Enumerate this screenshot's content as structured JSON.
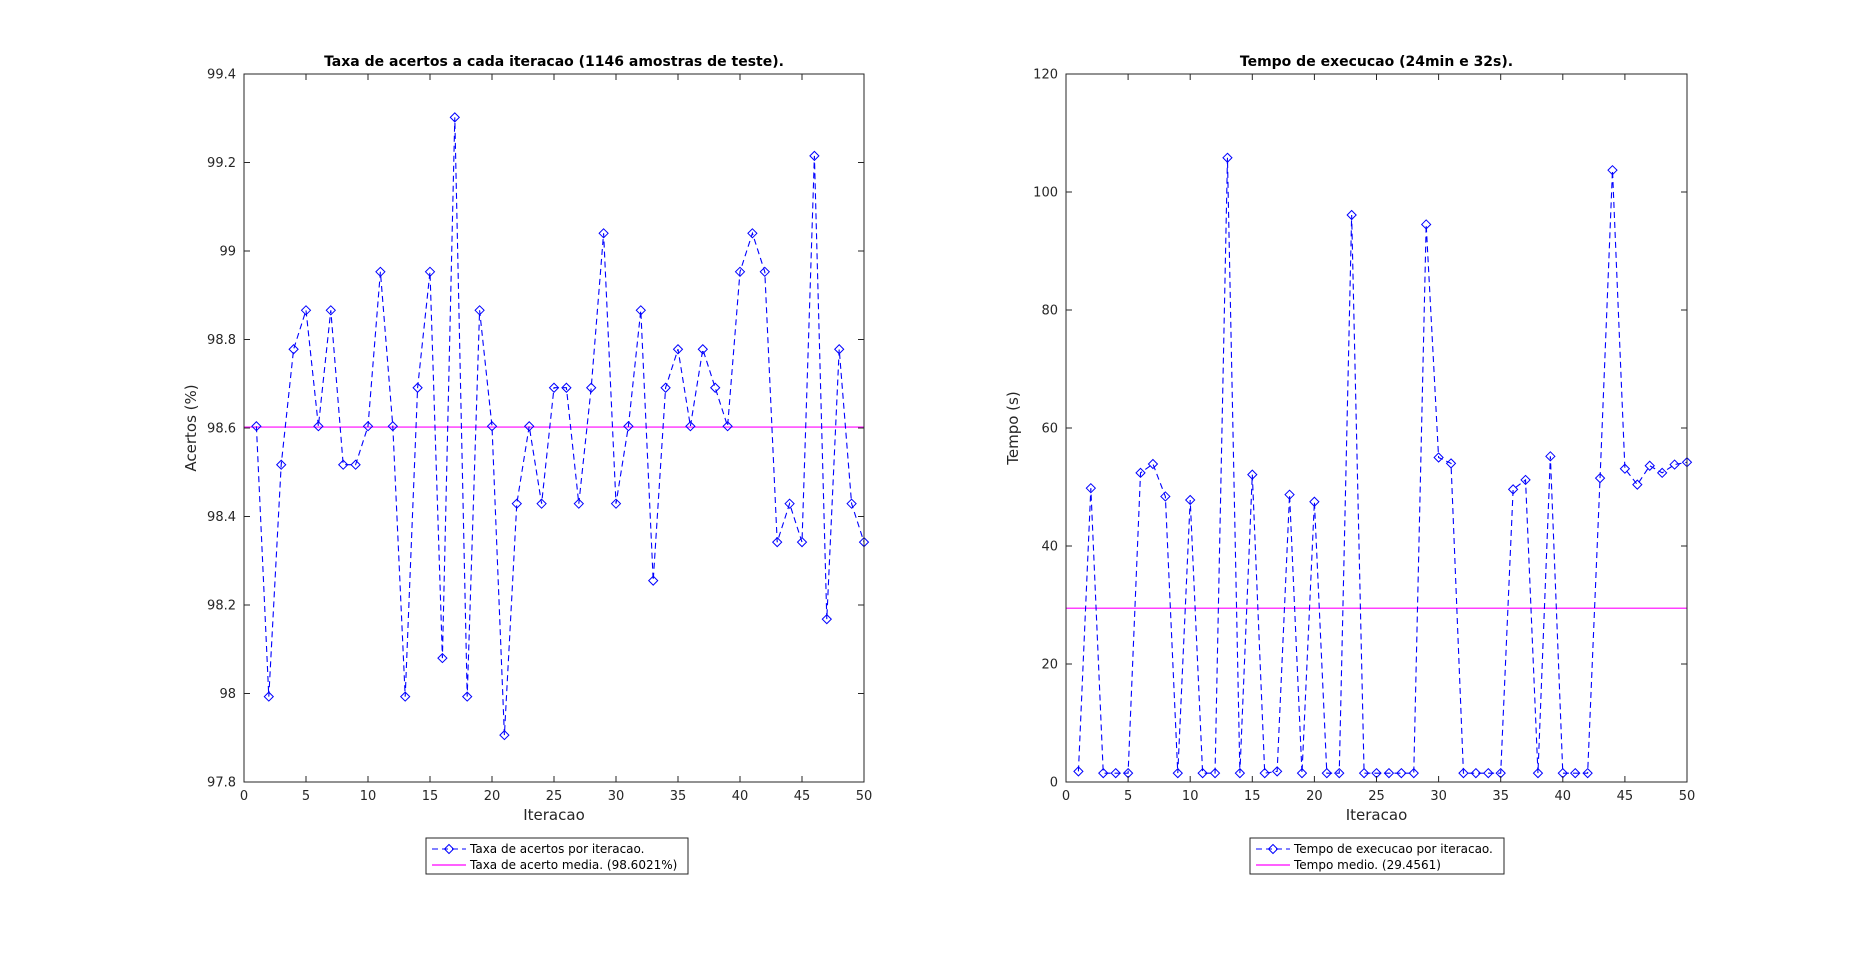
{
  "chart_data": [
    {
      "type": "line",
      "title": "Taxa de acertos a cada iteracao (1146 amostras de teste).",
      "xlabel": "Iteracao",
      "ylabel": "Acertos (%)",
      "xlim": [
        0,
        50
      ],
      "ylim": [
        97.8,
        99.4
      ],
      "xticks": [
        0,
        5,
        10,
        15,
        20,
        25,
        30,
        35,
        40,
        45,
        50
      ],
      "xtick_labels": [
        "0",
        "5",
        "10",
        "15",
        "20",
        "25",
        "30",
        "35",
        "40",
        "45",
        "50"
      ],
      "yticks": [
        97.8,
        98,
        98.2,
        98.4,
        98.6,
        98.8,
        99,
        99.2,
        99.4
      ],
      "ytick_labels": [
        "97.8",
        "98",
        "98.2",
        "98.4",
        "98.6",
        "98.8",
        "99",
        "99.2",
        "99.4"
      ],
      "grid": false,
      "legend_position": "below",
      "x": [
        1,
        2,
        3,
        4,
        5,
        6,
        7,
        8,
        9,
        10,
        11,
        12,
        13,
        14,
        15,
        16,
        17,
        18,
        19,
        20,
        21,
        22,
        23,
        24,
        25,
        26,
        27,
        28,
        29,
        30,
        31,
        32,
        33,
        34,
        35,
        36,
        37,
        38,
        39,
        40,
        41,
        42,
        43,
        44,
        45,
        46,
        47,
        48,
        49,
        50
      ],
      "series": [
        {
          "name": "Taxa de acertos por iteracao.",
          "style": "dashed-diamond",
          "color": "#0000ff",
          "values": [
            98.604,
            97.993,
            98.517,
            98.778,
            98.866,
            98.604,
            98.866,
            98.517,
            98.517,
            98.604,
            98.953,
            98.604,
            97.993,
            98.691,
            98.953,
            98.08,
            99.302,
            97.993,
            98.866,
            98.604,
            97.906,
            98.429,
            98.604,
            98.429,
            98.691,
            98.691,
            98.429,
            98.691,
            99.04,
            98.429,
            98.604,
            98.866,
            98.255,
            98.691,
            98.778,
            98.604,
            98.778,
            98.691,
            98.604,
            98.953,
            99.04,
            98.953,
            98.342,
            98.429,
            98.342,
            99.215,
            98.168,
            98.778,
            98.429,
            98.342
          ]
        },
        {
          "name": "Taxa de acerto media. (98.6021%)",
          "style": "solid",
          "color": "#ff00ff",
          "constant": 98.6021
        }
      ]
    },
    {
      "type": "line",
      "title": "Tempo de execucao (24min e 32s).",
      "xlabel": "Iteracao",
      "ylabel": "Tempo (s)",
      "xlim": [
        0,
        50
      ],
      "ylim": [
        0,
        120
      ],
      "xticks": [
        0,
        5,
        10,
        15,
        20,
        25,
        30,
        35,
        40,
        45,
        50
      ],
      "xtick_labels": [
        "0",
        "5",
        "10",
        "15",
        "20",
        "25",
        "30",
        "35",
        "40",
        "45",
        "50"
      ],
      "yticks": [
        0,
        20,
        40,
        60,
        80,
        100,
        120
      ],
      "ytick_labels": [
        "0",
        "20",
        "40",
        "60",
        "80",
        "100",
        "120"
      ],
      "grid": false,
      "legend_position": "below",
      "x": [
        1,
        2,
        3,
        4,
        5,
        6,
        7,
        8,
        9,
        10,
        11,
        12,
        13,
        14,
        15,
        16,
        17,
        18,
        19,
        20,
        21,
        22,
        23,
        24,
        25,
        26,
        27,
        28,
        29,
        30,
        31,
        32,
        33,
        34,
        35,
        36,
        37,
        38,
        39,
        40,
        41,
        42,
        43,
        44,
        45,
        46,
        47,
        48,
        49,
        50
      ],
      "series": [
        {
          "name": "Tempo de execucao por iteracao.",
          "style": "dashed-diamond",
          "color": "#0000ff",
          "values": [
            1.8,
            49.8,
            1.5,
            1.5,
            1.5,
            52.4,
            53.9,
            48.4,
            1.5,
            47.8,
            1.5,
            1.5,
            105.8,
            1.5,
            52.1,
            1.5,
            1.8,
            48.7,
            1.5,
            47.5,
            1.5,
            1.5,
            96.1,
            1.5,
            1.5,
            1.5,
            1.5,
            1.5,
            94.5,
            55.0,
            54.0,
            1.5,
            1.5,
            1.5,
            1.5,
            49.6,
            51.2,
            1.5,
            55.2,
            1.5,
            1.5,
            1.5,
            51.5,
            103.7,
            53.1,
            50.4,
            53.6,
            52.4,
            53.8,
            54.2
          ]
        },
        {
          "name": "Tempo medio. (29.4561)",
          "style": "solid",
          "color": "#ff00ff",
          "constant": 29.4561
        }
      ]
    }
  ]
}
